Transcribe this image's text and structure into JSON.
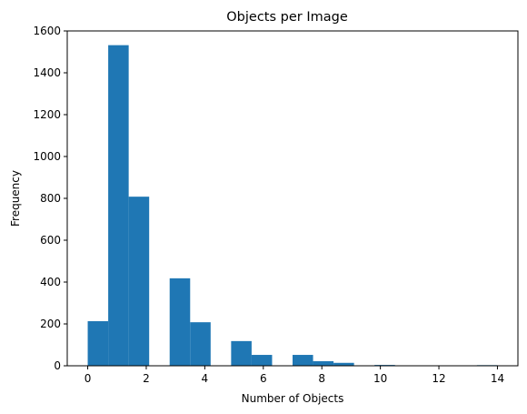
{
  "chart_data": {
    "type": "bar",
    "title": "Objects per Image",
    "xlabel": "Number of Objects",
    "ylabel": "Frequency",
    "xlim": [
      -0.7,
      14.7
    ],
    "ylim": [
      0,
      1600
    ],
    "xticks": [
      0,
      2,
      4,
      6,
      8,
      10,
      12,
      14
    ],
    "yticks": [
      0,
      200,
      400,
      600,
      800,
      1000,
      1200,
      1400,
      1600
    ],
    "grid": false,
    "legend": "none",
    "bar_color": "#1f77b4",
    "bins": [
      {
        "start": 0.0,
        "end": 0.7,
        "value": 213
      },
      {
        "start": 0.7,
        "end": 1.4,
        "value": 1532
      },
      {
        "start": 1.4,
        "end": 2.1,
        "value": 808
      },
      {
        "start": 2.1,
        "end": 2.8,
        "value": 0
      },
      {
        "start": 2.8,
        "end": 3.5,
        "value": 418
      },
      {
        "start": 3.5,
        "end": 4.2,
        "value": 208
      },
      {
        "start": 4.2,
        "end": 4.9,
        "value": 0
      },
      {
        "start": 4.9,
        "end": 5.6,
        "value": 118
      },
      {
        "start": 5.6,
        "end": 6.3,
        "value": 52
      },
      {
        "start": 6.3,
        "end": 7.0,
        "value": 0
      },
      {
        "start": 7.0,
        "end": 7.7,
        "value": 52
      },
      {
        "start": 7.7,
        "end": 8.4,
        "value": 22
      },
      {
        "start": 8.4,
        "end": 9.1,
        "value": 14
      },
      {
        "start": 9.1,
        "end": 9.8,
        "value": 0
      },
      {
        "start": 9.8,
        "end": 10.5,
        "value": 4
      },
      {
        "start": 10.5,
        "end": 11.2,
        "value": 0
      },
      {
        "start": 11.2,
        "end": 11.9,
        "value": 0
      },
      {
        "start": 11.9,
        "end": 12.6,
        "value": 0
      },
      {
        "start": 12.6,
        "end": 13.3,
        "value": 2
      },
      {
        "start": 13.3,
        "end": 14.0,
        "value": 3
      }
    ]
  }
}
